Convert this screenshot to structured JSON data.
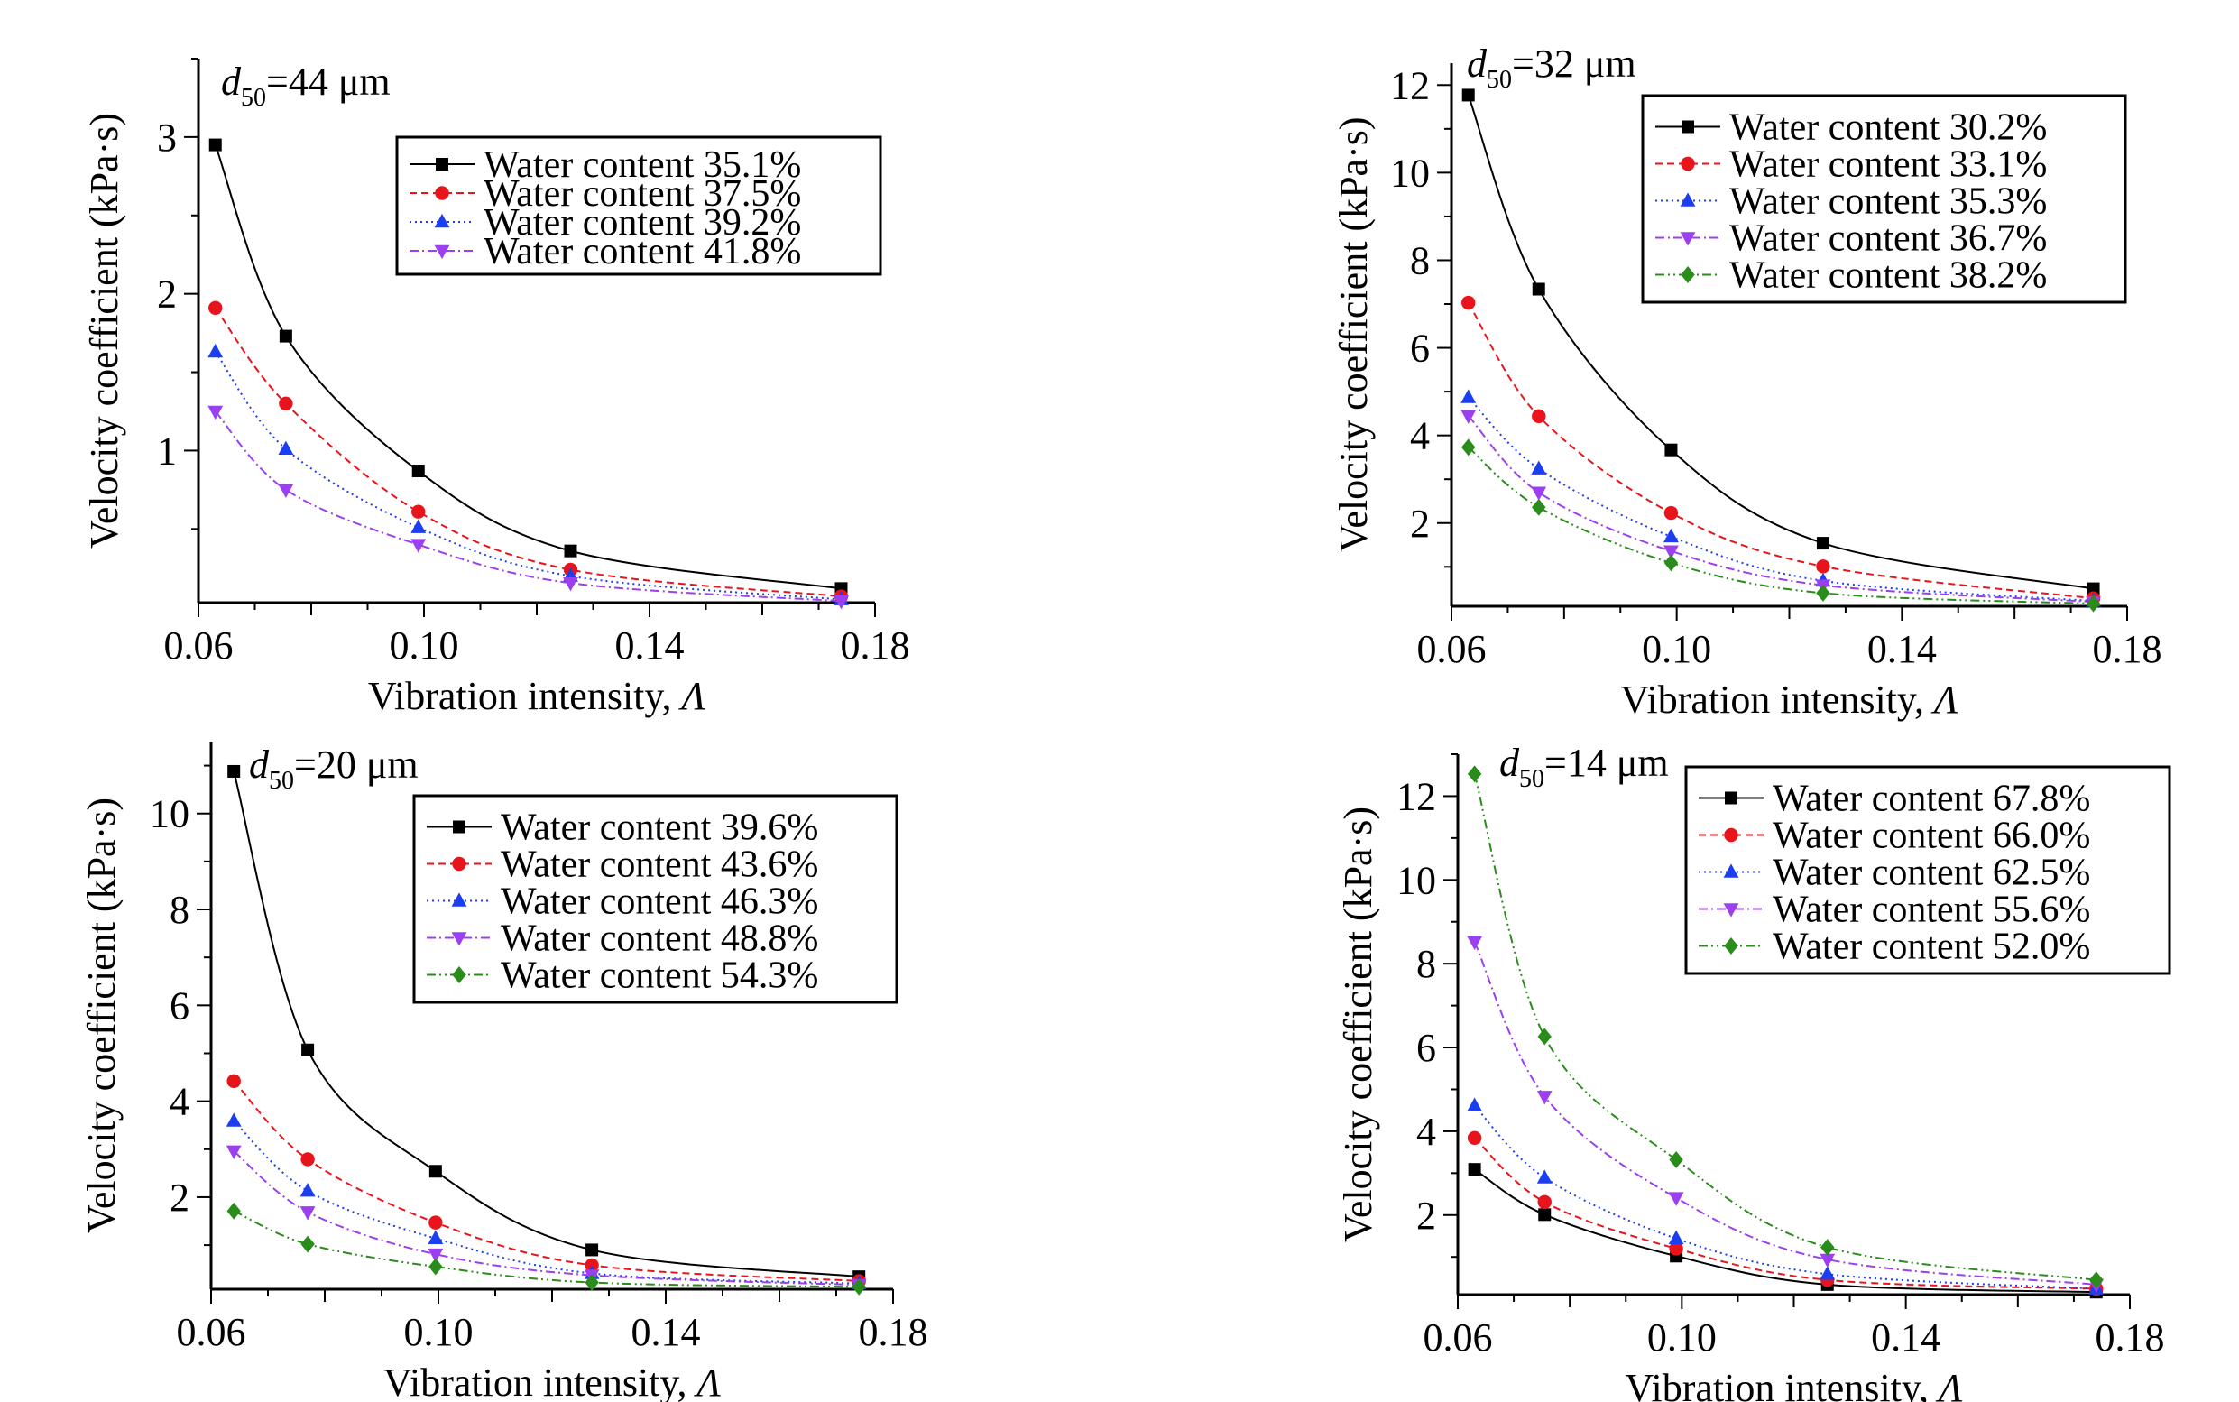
{
  "chart_data": [
    {
      "type": "line",
      "title": "d50=44 μm",
      "title_var": "d",
      "title_sub": "50",
      "title_rest": "=44 μm",
      "xlabel": "Vibration intensity, ",
      "xlabel_symbol": "Λ",
      "ylabel": "Velocity coefficient (kPa·s)",
      "xlim": [
        0.06,
        0.18
      ],
      "ylim": [
        0.03,
        3.5
      ],
      "xticks": [
        0.06,
        0.1,
        0.14,
        0.18
      ],
      "xtick_labels": [
        "0.06",
        "0.10",
        "0.14",
        "0.18"
      ],
      "yticks": [
        1,
        2,
        3
      ],
      "ytick_labels": [
        "1",
        "2",
        "3"
      ],
      "yminor_step": 0.5,
      "legend_position": "top-right",
      "grid": false,
      "x": [
        0.063,
        0.0755,
        0.099,
        0.126,
        0.174
      ],
      "series": [
        {
          "name": "Water content 35.1%",
          "color": "#000000",
          "marker": "square",
          "line": "solid",
          "values": [
            2.95,
            1.73,
            0.87,
            0.36,
            0.12
          ]
        },
        {
          "name": "Water content 37.5%",
          "color": "#e8141c",
          "marker": "circle",
          "line": "dashed",
          "values": [
            1.91,
            1.3,
            0.61,
            0.24,
            0.07
          ]
        },
        {
          "name": "Water content 39.2%",
          "color": "#1b3ff0",
          "marker": "triangle-up",
          "line": "dotted",
          "values": [
            1.63,
            1.01,
            0.51,
            0.2,
            0.05
          ]
        },
        {
          "name": "Water content 41.8%",
          "color": "#9b3ff0",
          "marker": "triangle-down",
          "line": "dashdot",
          "values": [
            1.25,
            0.75,
            0.4,
            0.155,
            0.04
          ]
        }
      ]
    },
    {
      "type": "line",
      "title": "d50=32 μm",
      "title_var": "d",
      "title_sub": "50",
      "title_rest": "=32 μm",
      "xlabel": "Vibration intensity, ",
      "xlabel_symbol": "Λ",
      "ylabel": "Velocity coefficient (kPa·s)",
      "xlim": [
        0.06,
        0.18
      ],
      "ylim": [
        0.1,
        12.5
      ],
      "xticks": [
        0.06,
        0.1,
        0.14,
        0.18
      ],
      "xtick_labels": [
        "0.06",
        "0.10",
        "0.14",
        "0.18"
      ],
      "yticks": [
        2,
        4,
        6,
        8,
        10,
        12
      ],
      "ytick_labels": [
        "2",
        "4",
        "6",
        "8",
        "10",
        "12"
      ],
      "yminor_step": 1,
      "legend_position": "top-right",
      "grid": false,
      "x": [
        0.063,
        0.0755,
        0.099,
        0.126,
        0.174
      ],
      "series": [
        {
          "name": "Water content 30.2%",
          "color": "#000000",
          "marker": "square",
          "line": "solid",
          "values": [
            11.77,
            7.34,
            3.67,
            1.54,
            0.5
          ]
        },
        {
          "name": "Water content 33.1%",
          "color": "#e8141c",
          "marker": "circle",
          "line": "dashed",
          "values": [
            7.03,
            4.44,
            2.23,
            1.01,
            0.28
          ]
        },
        {
          "name": "Water content 35.3%",
          "color": "#1b3ff0",
          "marker": "triangle-up",
          "line": "dotted",
          "values": [
            4.87,
            3.24,
            1.69,
            0.68,
            0.22
          ]
        },
        {
          "name": "Water content 36.7%",
          "color": "#9b3ff0",
          "marker": "triangle-down",
          "line": "dashdot",
          "values": [
            4.45,
            2.7,
            1.36,
            0.58,
            0.2
          ]
        },
        {
          "name": "Water content 38.2%",
          "color": "#2a8c1a",
          "marker": "diamond",
          "line": "dashdotdot",
          "values": [
            3.73,
            2.36,
            1.09,
            0.4,
            0.16
          ]
        }
      ]
    },
    {
      "type": "line",
      "title": "d50=20 μm",
      "title_var": "d",
      "title_sub": "50",
      "title_rest": "=20 μm",
      "xlabel": "Vibration intensity, ",
      "xlabel_symbol": "Λ",
      "ylabel": "Velocity coefficient (kPa·s)",
      "xlim": [
        0.06,
        0.18
      ],
      "ylim": [
        0.08,
        11.5
      ],
      "xticks": [
        0.06,
        0.1,
        0.14,
        0.18
      ],
      "xtick_labels": [
        "0.06",
        "0.10",
        "0.14",
        "0.18"
      ],
      "yticks": [
        2,
        4,
        6,
        8,
        10
      ],
      "ytick_labels": [
        "2",
        "4",
        "6",
        "8",
        "10"
      ],
      "yminor_step": 1,
      "legend_position": "top-right",
      "grid": false,
      "x": [
        0.064,
        0.077,
        0.0995,
        0.127,
        0.174
      ],
      "series": [
        {
          "name": "Water content 39.6%",
          "color": "#000000",
          "marker": "square",
          "line": "solid",
          "values": [
            10.88,
            5.07,
            2.54,
            0.9,
            0.34
          ]
        },
        {
          "name": "Water content 43.6%",
          "color": "#e8141c",
          "marker": "circle",
          "line": "dashed",
          "values": [
            4.42,
            2.79,
            1.47,
            0.58,
            0.25
          ]
        },
        {
          "name": "Water content 46.3%",
          "color": "#1b3ff0",
          "marker": "triangle-up",
          "line": "dotted",
          "values": [
            3.59,
            2.13,
            1.14,
            0.41,
            0.2
          ]
        },
        {
          "name": "Water content 48.8%",
          "color": "#9b3ff0",
          "marker": "triangle-down",
          "line": "dashdot",
          "values": [
            2.96,
            1.69,
            0.81,
            0.37,
            0.17
          ]
        },
        {
          "name": "Water content 54.3%",
          "color": "#2a8c1a",
          "marker": "diamond",
          "line": "dashdotdot",
          "values": [
            1.71,
            1.02,
            0.55,
            0.22,
            0.13
          ]
        }
      ]
    },
    {
      "type": "line",
      "title": "d50=14 μm",
      "title_var": "d",
      "title_sub": "50",
      "title_rest": "=14 μm",
      "xlabel": "Vibration intensity, ",
      "xlabel_symbol": "Λ",
      "ylabel": "Velocity coefficient (kPa·s)",
      "xlim": [
        0.06,
        0.18
      ],
      "ylim": [
        0.1,
        13.0
      ],
      "xticks": [
        0.06,
        0.1,
        0.14,
        0.18
      ],
      "xtick_labels": [
        "0.06",
        "0.10",
        "0.14",
        "0.18"
      ],
      "yticks": [
        2,
        4,
        6,
        8,
        10,
        12
      ],
      "ytick_labels": [
        "2",
        "4",
        "6",
        "8",
        "10",
        "12"
      ],
      "yminor_step": 1,
      "legend_position": "top-right",
      "grid": false,
      "x": [
        0.063,
        0.0755,
        0.099,
        0.126,
        0.174
      ],
      "series": [
        {
          "name": "Water content 67.8%",
          "color": "#000000",
          "marker": "square",
          "line": "solid",
          "values": [
            3.09,
            2.01,
            1.02,
            0.34,
            0.16
          ]
        },
        {
          "name": "Water content 66.0%",
          "color": "#e8141c",
          "marker": "circle",
          "line": "dashed",
          "values": [
            3.84,
            2.31,
            1.2,
            0.45,
            0.24
          ]
        },
        {
          "name": "Water content 62.5%",
          "color": "#1b3ff0",
          "marker": "triangle-up",
          "line": "dotted",
          "values": [
            4.61,
            2.89,
            1.44,
            0.59,
            0.24
          ]
        },
        {
          "name": "Water content 55.6%",
          "color": "#9b3ff0",
          "marker": "triangle-down",
          "line": "dashdot",
          "values": [
            8.52,
            4.83,
            2.41,
            0.94,
            0.34
          ]
        },
        {
          "name": "Water content 52.0%",
          "color": "#2a8c1a",
          "marker": "diamond",
          "line": "dashdotdot",
          "values": [
            12.53,
            6.26,
            3.32,
            1.23,
            0.45
          ]
        }
      ]
    }
  ]
}
